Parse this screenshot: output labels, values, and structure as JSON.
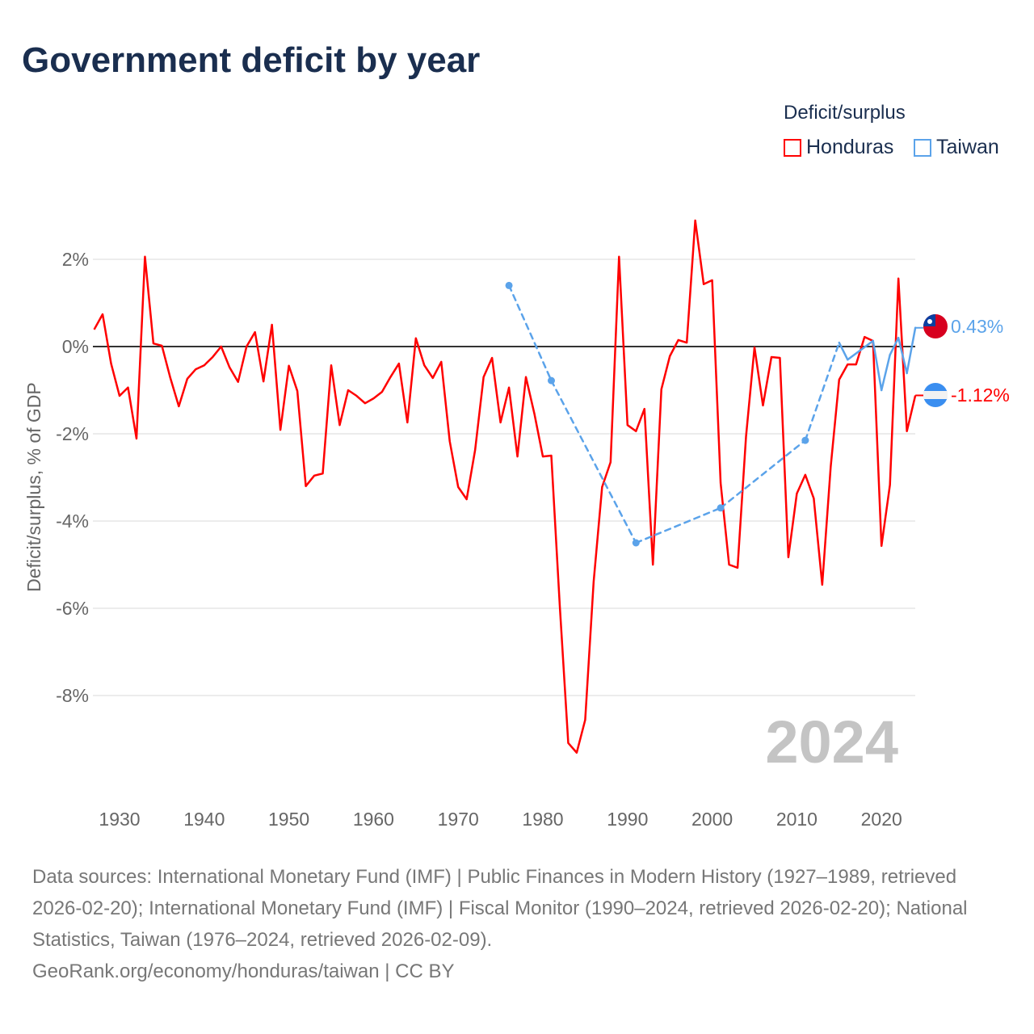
{
  "title": "Government deficit by year",
  "legend": {
    "title": "Deficit/surplus",
    "items": [
      {
        "label": "Honduras",
        "color": "#ff0000"
      },
      {
        "label": "Taiwan",
        "color": "#5ba3ea"
      }
    ]
  },
  "year_label": "2024",
  "end_labels": {
    "taiwan": "0.43%",
    "honduras": "-1.12%"
  },
  "source_lines": [
    "Data sources: International Monetary Fund (IMF) | Public Finances in Modern History (1927–1989, retrieved 2026-02-20); International Monetary Fund (IMF) | Fiscal Monitor (1990–2024, retrieved 2026-02-20); National Statistics, Taiwan (1976–2024, retrieved 2026-02-09).",
    "GeoRank.org/economy/honduras/taiwan | CC BY"
  ],
  "chart_data": {
    "type": "line",
    "title": "Government deficit by year",
    "xlabel": "",
    "ylabel": "Deficit/surplus, % of GDP",
    "xlim": [
      1927,
      2024
    ],
    "ylim": [
      -10,
      3
    ],
    "yticks": [
      2,
      0,
      -2,
      -4,
      -6,
      -8
    ],
    "ytick_labels": [
      "2%",
      "0%",
      "-2%",
      "-4%",
      "-6%",
      "-8%"
    ],
    "xticks": [
      1930,
      1940,
      1950,
      1960,
      1970,
      1980,
      1990,
      2000,
      2010,
      2020
    ],
    "legend_position": "top-right",
    "series": [
      {
        "name": "Honduras",
        "color": "#ff0000",
        "x": [
          1927,
          1928,
          1929,
          1930,
          1931,
          1932,
          1933,
          1934,
          1935,
          1936,
          1937,
          1938,
          1939,
          1940,
          1941,
          1942,
          1943,
          1944,
          1945,
          1946,
          1947,
          1948,
          1949,
          1950,
          1951,
          1952,
          1953,
          1954,
          1955,
          1956,
          1957,
          1958,
          1959,
          1960,
          1961,
          1962,
          1963,
          1964,
          1965,
          1966,
          1967,
          1968,
          1969,
          1970,
          1971,
          1972,
          1973,
          1974,
          1975,
          1976,
          1977,
          1978,
          1979,
          1980,
          1981,
          1982,
          1983,
          1984,
          1985,
          1986,
          1987,
          1988,
          1989,
          1990,
          1991,
          1992,
          1993,
          1994,
          1995,
          1996,
          1997,
          1998,
          1999,
          2000,
          2001,
          2002,
          2003,
          2004,
          2005,
          2006,
          2007,
          2008,
          2009,
          2010,
          2011,
          2012,
          2013,
          2014,
          2015,
          2016,
          2017,
          2018,
          2019,
          2020,
          2021,
          2022,
          2023,
          2024
        ],
        "values": [
          0.39,
          0.74,
          -0.39,
          -1.13,
          -0.94,
          -2.11,
          2.06,
          0.07,
          0.02,
          -0.72,
          -1.37,
          -0.74,
          -0.52,
          -0.43,
          -0.24,
          0,
          -0.48,
          -0.81,
          0,
          0.33,
          -0.8,
          0.5,
          -1.91,
          -0.44,
          -1.02,
          -3.2,
          -2.96,
          -2.91,
          -0.43,
          -1.8,
          -1.0,
          -1.13,
          -1.3,
          -1.19,
          -1.04,
          -0.7,
          -0.39,
          -1.74,
          0.19,
          -0.43,
          -0.72,
          -0.35,
          -2.17,
          -3.22,
          -3.5,
          -2.37,
          -0.7,
          -0.26,
          -1.74,
          -0.94,
          -2.52,
          -0.7,
          -1.54,
          -2.52,
          -2.5,
          -5.94,
          -9.09,
          -9.31,
          -8.56,
          -5.39,
          -3.22,
          -2.65,
          2.06,
          -1.8,
          -1.94,
          -1.43,
          -5.0,
          -0.98,
          -0.22,
          0.15,
          0.09,
          2.89,
          1.43,
          1.52,
          -3.13,
          -5.0,
          -5.07,
          -2.06,
          -0.02,
          -1.35,
          -0.24,
          -0.26,
          -4.83,
          -3.37,
          -2.94,
          -3.48,
          -5.46,
          -2.76,
          -0.76,
          -0.41,
          -0.41,
          0.22,
          0.13,
          -4.57,
          -3.17,
          1.56,
          -1.94,
          -1.12
        ]
      },
      {
        "name": "Taiwan",
        "color": "#5ba3ea",
        "x": [
          1976,
          1981,
          1991,
          2001,
          2011,
          2015,
          2016,
          2019,
          2020,
          2021,
          2022,
          2023,
          2024
        ],
        "values": [
          1.4,
          -0.78,
          -4.5,
          -3.7,
          -2.15,
          0.09,
          -0.3,
          0.13,
          -1.0,
          -0.19,
          0.2,
          -0.61,
          0.43
        ]
      }
    ]
  }
}
